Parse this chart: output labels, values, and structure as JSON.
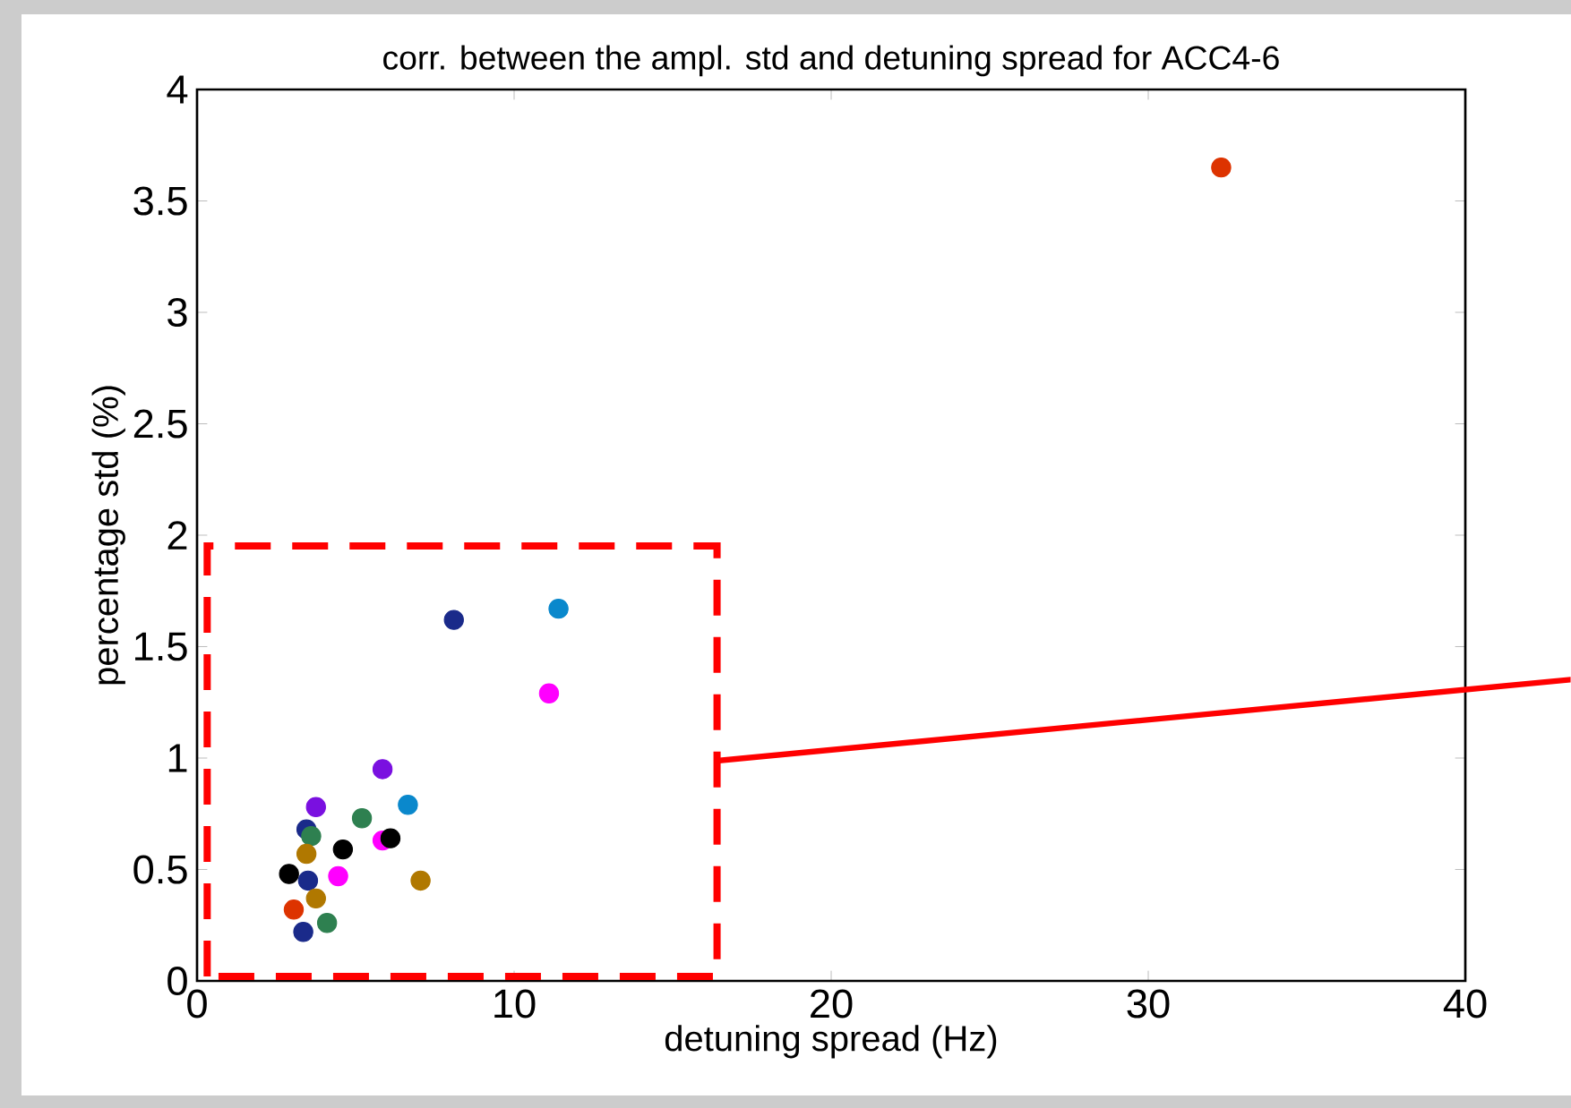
{
  "chart_data": {
    "type": "scatter",
    "title": "corr. between the ampl. std and detuning spread for ACC4-6",
    "xlabel": "detuning spread (Hz)",
    "ylabel": "percentage std (%)",
    "xlim": [
      0,
      40
    ],
    "ylim": [
      0,
      4
    ],
    "xticks": [
      0,
      10,
      20,
      30,
      40
    ],
    "yticks": [
      0,
      0.5,
      1,
      1.5,
      2,
      2.5,
      3,
      3.5,
      4
    ],
    "grid": false,
    "series": [
      {
        "color": "#1a2a8a",
        "x": [
          8.1,
          3.45,
          3.5,
          3.35
        ],
        "values": [
          1.62,
          0.68,
          0.45,
          0.22
        ]
      },
      {
        "color": "#0a88cc",
        "x": [
          11.4,
          6.65
        ],
        "values": [
          1.67,
          0.79
        ]
      },
      {
        "color": "#ff00ff",
        "x": [
          11.1,
          5.85,
          4.45
        ],
        "values": [
          1.29,
          0.63,
          0.47
        ]
      },
      {
        "color": "#dd3300",
        "x": [
          32.3,
          3.05
        ],
        "values": [
          3.65,
          0.32
        ]
      },
      {
        "color": "#7a10e0",
        "x": [
          5.85,
          3.75
        ],
        "values": [
          0.95,
          0.78
        ]
      },
      {
        "color": "#2e8050",
        "x": [
          5.2,
          3.6,
          4.1
        ],
        "values": [
          0.73,
          0.65,
          0.26
        ]
      },
      {
        "color": "#000000",
        "x": [
          6.1,
          4.6,
          2.9
        ],
        "values": [
          0.64,
          0.59,
          0.48
        ]
      },
      {
        "color": "#b07800",
        "x": [
          7.05,
          3.45,
          3.75
        ],
        "values": [
          0.45,
          0.57,
          0.37
        ]
      }
    ]
  }
}
